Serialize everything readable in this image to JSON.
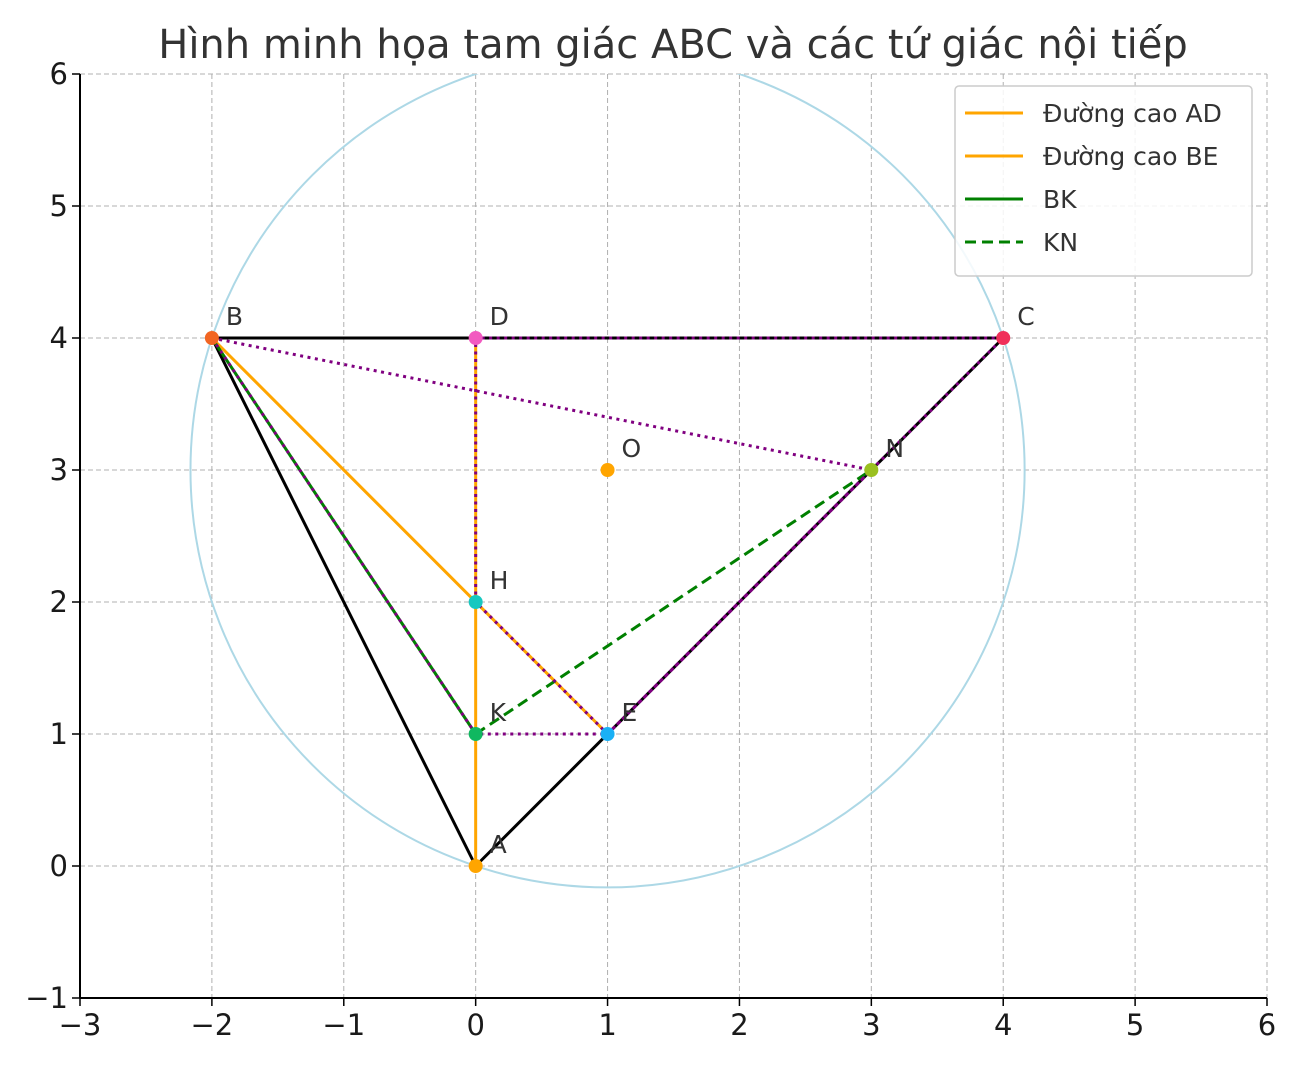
{
  "chart_data": {
    "type": "scatter",
    "title": "Hình minh họa tam giác ABC và các tứ giác nội tiếp",
    "xlabel": "",
    "ylabel": "",
    "xlim": [
      -3,
      6
    ],
    "ylim": [
      -1,
      6
    ],
    "xticks": [
      -3,
      -2,
      -1,
      0,
      1,
      2,
      3,
      4,
      5,
      6
    ],
    "yticks": [
      -1,
      0,
      1,
      2,
      3,
      4,
      5,
      6
    ],
    "grid": true,
    "legend_position": "top-right",
    "circle": {
      "center": [
        1,
        3
      ],
      "radius": 3.1623,
      "color": "#add8e6"
    },
    "points": [
      {
        "label": "A",
        "x": 0,
        "y": 0,
        "color": "#ffa500"
      },
      {
        "label": "B",
        "x": -2,
        "y": 4,
        "color": "#f26522"
      },
      {
        "label": "C",
        "x": 4,
        "y": 4,
        "color": "#f0305a"
      },
      {
        "label": "D",
        "x": 0,
        "y": 4,
        "color": "#f25ac0"
      },
      {
        "label": "E",
        "x": 1,
        "y": 1,
        "color": "#1ab0f5"
      },
      {
        "label": "H",
        "x": 0,
        "y": 2,
        "color": "#18c8c0"
      },
      {
        "label": "K",
        "x": 0,
        "y": 1,
        "color": "#10b860"
      },
      {
        "label": "N",
        "x": 3,
        "y": 3,
        "color": "#9ac020"
      },
      {
        "label": "O",
        "x": 1,
        "y": 3,
        "color": "#ffa500"
      }
    ],
    "triangle": {
      "vertices": [
        "A",
        "B",
        "C"
      ],
      "color": "#000000"
    },
    "series": [
      {
        "name": "Đường cao AD",
        "from": "A",
        "to": "D",
        "color": "#ffa500",
        "style": "solid"
      },
      {
        "name": "Đường cao BE",
        "from": "B",
        "to": "E",
        "color": "#ffa500",
        "style": "solid"
      },
      {
        "name": "BK",
        "from": "B",
        "to": "K",
        "color": "#008000",
        "style": "solid"
      },
      {
        "name": "KN",
        "from": "K",
        "to": "N",
        "color": "#008000",
        "style": "dashed"
      }
    ],
    "quadrilaterals": [
      {
        "vertices": [
          "H",
          "D",
          "C",
          "E"
        ],
        "color": "#800080",
        "style": "dotted"
      },
      {
        "vertices": [
          "B",
          "N",
          "E",
          "K"
        ],
        "color": "#800080",
        "style": "dotted"
      }
    ]
  }
}
